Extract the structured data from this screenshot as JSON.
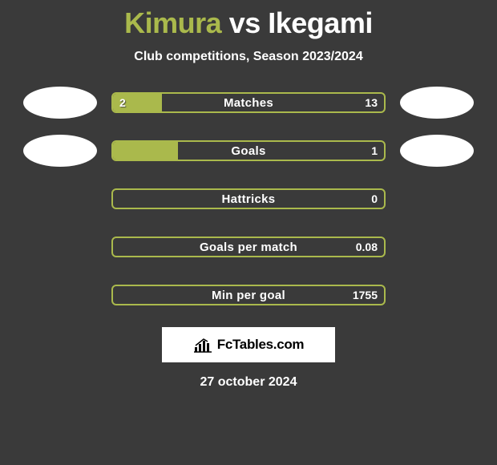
{
  "title": {
    "player1": "Kimura",
    "vs": "vs",
    "player2": "Ikegami",
    "player1_color": "#aab94c",
    "vs_color": "#ffffff",
    "player2_color": "#ffffff",
    "fontsize": 36
  },
  "subtitle": "Club competitions, Season 2023/2024",
  "bars": {
    "outer_width": 342,
    "outer_height": 26,
    "border_color": "#aab94c",
    "fill_color": "#aab94c",
    "text_color": "#ffffff",
    "label_fontsize": 15,
    "value_fontsize": 14
  },
  "rows": [
    {
      "label": "Matches",
      "left_value": "2",
      "right_value": "13",
      "fill_pct": 18,
      "show_avatars": true,
      "avatar_left_color": "#ffffff",
      "avatar_right_color": "#ffffff"
    },
    {
      "label": "Goals",
      "left_value": "",
      "right_value": "1",
      "fill_pct": 24,
      "show_avatars": true,
      "avatar_left_color": "#ffffff",
      "avatar_right_color": "#ffffff"
    },
    {
      "label": "Hattricks",
      "left_value": "",
      "right_value": "0",
      "fill_pct": 0,
      "show_avatars": false
    },
    {
      "label": "Goals per match",
      "left_value": "",
      "right_value": "0.08",
      "fill_pct": 0,
      "show_avatars": false
    },
    {
      "label": "Min per goal",
      "left_value": "",
      "right_value": "1755",
      "fill_pct": 0,
      "show_avatars": false
    }
  ],
  "logo": {
    "text": "FcTables.com",
    "box_bg": "#ffffff",
    "text_color": "#000000"
  },
  "date": "27 october 2024",
  "background_color": "#3a3a3a"
}
